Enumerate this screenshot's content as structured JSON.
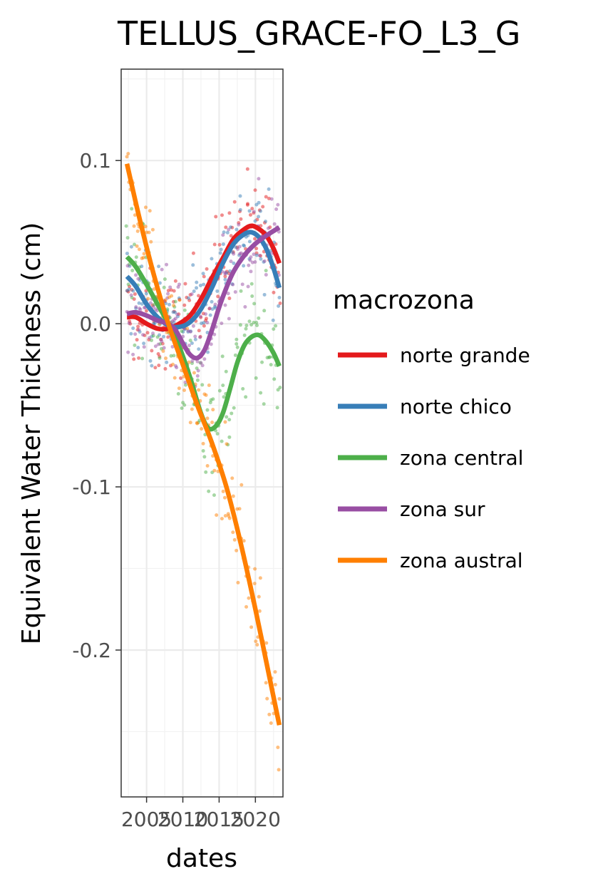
{
  "chart_data": {
    "type": "scatter",
    "title": "TELLUS_GRACE-FO_L3_G",
    "xlabel": "dates",
    "ylabel": "Equivalent Water Thickness (cm)",
    "xlim": [
      2001.5,
      2023.8
    ],
    "ylim": [
      -0.29,
      0.156
    ],
    "x_ticks": [
      2005,
      2010,
      2015,
      2020
    ],
    "y_ticks": [
      0.1,
      0.0,
      -0.1,
      -0.2
    ],
    "y_tick_labels": [
      "0.1",
      "0.0",
      "-0.1",
      "-0.2"
    ],
    "grid": true,
    "legend": {
      "title": "macrozona",
      "placement": "right"
    },
    "series": [
      {
        "name": "norte grande",
        "color": "#e41a1c",
        "smooth_x": [
          2002.3,
          2003.5,
          2005,
          2006.5,
          2008,
          2009.5,
          2011,
          2012.5,
          2014,
          2015.5,
          2017,
          2018.5,
          2019.5,
          2020.5,
          2021.5,
          2022.5,
          2023.3
        ],
        "smooth_y": [
          0.004,
          0.004,
          0.0,
          -0.003,
          -0.003,
          0.0,
          0.005,
          0.015,
          0.028,
          0.04,
          0.052,
          0.058,
          0.06,
          0.058,
          0.054,
          0.046,
          0.037
        ]
      },
      {
        "name": "norte chico",
        "color": "#377eb8",
        "smooth_x": [
          2002.3,
          2003.5,
          2005,
          2006.5,
          2008,
          2009.5,
          2011,
          2012.5,
          2014,
          2015.5,
          2017,
          2018.5,
          2019.5,
          2020.5,
          2021.5,
          2022.5,
          2023.3
        ],
        "smooth_y": [
          0.029,
          0.023,
          0.012,
          0.004,
          -0.001,
          -0.002,
          0.001,
          0.009,
          0.022,
          0.037,
          0.049,
          0.055,
          0.056,
          0.053,
          0.046,
          0.034,
          0.022
        ]
      },
      {
        "name": "zona central",
        "color": "#4daf4a",
        "smooth_x": [
          2002.3,
          2003.5,
          2005,
          2006.5,
          2008,
          2009.5,
          2011,
          2012.5,
          2013.5,
          2014.5,
          2015.5,
          2016.5,
          2017.5,
          2018.5,
          2019.5,
          2020.5,
          2021.5,
          2022.5,
          2023.3
        ],
        "smooth_y": [
          0.041,
          0.035,
          0.024,
          0.012,
          0.0,
          -0.014,
          -0.033,
          -0.055,
          -0.064,
          -0.063,
          -0.055,
          -0.04,
          -0.024,
          -0.013,
          -0.008,
          -0.007,
          -0.011,
          -0.018,
          -0.026
        ]
      },
      {
        "name": "zona sur",
        "color": "#984ea3",
        "smooth_x": [
          2002.3,
          2003.5,
          2005,
          2006.5,
          2008,
          2009,
          2010,
          2011,
          2012,
          2013,
          2014,
          2015,
          2016,
          2017,
          2018.5,
          2020,
          2021.5,
          2023.3
        ],
        "smooth_y": [
          0.006,
          0.007,
          0.005,
          0.002,
          0.0,
          -0.004,
          -0.012,
          -0.019,
          -0.021,
          -0.016,
          -0.004,
          0.01,
          0.022,
          0.032,
          0.042,
          0.049,
          0.054,
          0.059
        ]
      },
      {
        "name": "zona austral",
        "color": "#ff7f00",
        "smooth_x": [
          2002.3,
          2004,
          2006,
          2008,
          2010,
          2012,
          2014,
          2016,
          2018,
          2020,
          2022,
          2023.3
        ],
        "smooth_y": [
          0.098,
          0.065,
          0.03,
          0.0,
          -0.025,
          -0.05,
          -0.073,
          -0.1,
          -0.135,
          -0.175,
          -0.218,
          -0.246
        ]
      }
    ]
  }
}
